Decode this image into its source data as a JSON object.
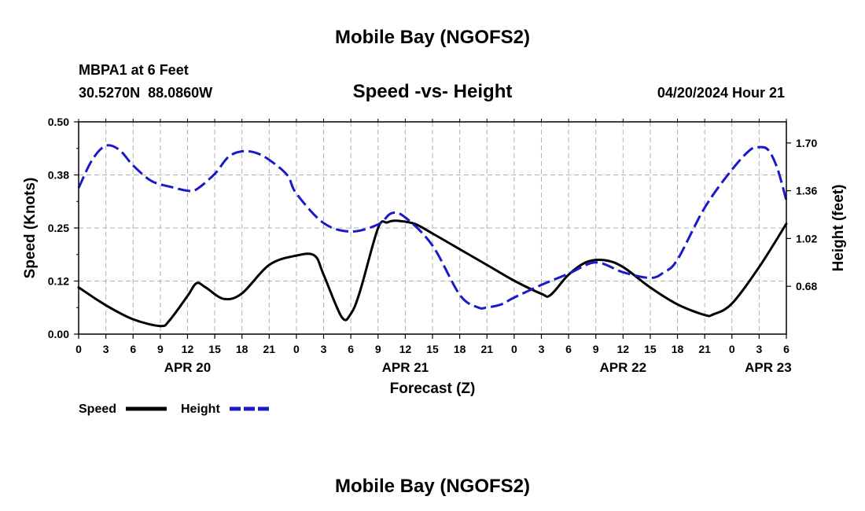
{
  "chart_data": {
    "type": "line",
    "title": "Mobile Bay (NGOFS2)",
    "subtitle": "Speed -vs- Height",
    "station": "MBPA1 at 6 Feet",
    "coordinates": "30.5270N  88.0860W",
    "timestamp": "04/20/2024 Hour 21",
    "xlabel": "Forecast (Z)",
    "ylabel_left": "Speed (Knots)",
    "ylabel_right": "Height (feet)",
    "x_range": [
      0,
      78
    ],
    "ylim_left": [
      0,
      0.5
    ],
    "ylim_right": [
      0.34,
      1.85
    ],
    "grid": true,
    "x_ticks": [
      {
        "x": 0,
        "label": "0"
      },
      {
        "x": 3,
        "label": "3"
      },
      {
        "x": 6,
        "label": "6"
      },
      {
        "x": 9,
        "label": "9"
      },
      {
        "x": 12,
        "label": "12"
      },
      {
        "x": 15,
        "label": "15"
      },
      {
        "x": 18,
        "label": "18"
      },
      {
        "x": 21,
        "label": "21"
      },
      {
        "x": 24,
        "label": "0"
      },
      {
        "x": 27,
        "label": "3"
      },
      {
        "x": 30,
        "label": "6"
      },
      {
        "x": 33,
        "label": "9"
      },
      {
        "x": 36,
        "label": "12"
      },
      {
        "x": 39,
        "label": "15"
      },
      {
        "x": 42,
        "label": "18"
      },
      {
        "x": 45,
        "label": "21"
      },
      {
        "x": 48,
        "label": "0"
      },
      {
        "x": 51,
        "label": "3"
      },
      {
        "x": 54,
        "label": "6"
      },
      {
        "x": 57,
        "label": "9"
      },
      {
        "x": 60,
        "label": "12"
      },
      {
        "x": 63,
        "label": "15"
      },
      {
        "x": 66,
        "label": "18"
      },
      {
        "x": 69,
        "label": "21"
      },
      {
        "x": 72,
        "label": "0"
      },
      {
        "x": 75,
        "label": "3"
      },
      {
        "x": 78,
        "label": "6"
      }
    ],
    "date_labels": [
      {
        "x": 12,
        "label": "APR 20"
      },
      {
        "x": 36,
        "label": "APR 21"
      },
      {
        "x": 60,
        "label": "APR 22"
      },
      {
        "x": 76,
        "label": "APR 23"
      }
    ],
    "left_ticks": [
      {
        "value": 0.0,
        "label": "0.00"
      },
      {
        "value": 0.125,
        "label": "0.12"
      },
      {
        "value": 0.25,
        "label": "0.25"
      },
      {
        "value": 0.375,
        "label": "0.38"
      },
      {
        "value": 0.5,
        "label": "0.50"
      }
    ],
    "right_ticks": [
      {
        "value": 0.68,
        "label": "0.68"
      },
      {
        "value": 1.02,
        "label": "1.02"
      },
      {
        "value": 1.36,
        "label": "1.36"
      },
      {
        "value": 1.7,
        "label": "1.70"
      }
    ],
    "series": [
      {
        "name": "Speed",
        "axis": "left",
        "color": "#000000",
        "dash": "solid",
        "x": [
          0,
          3,
          6,
          9,
          10,
          12,
          13,
          14,
          16,
          18,
          21,
          24,
          26,
          27,
          29,
          30,
          31,
          33,
          34,
          35,
          37,
          39,
          42,
          45,
          48,
          51,
          52,
          54,
          56,
          58,
          60,
          63,
          66,
          69,
          70,
          72,
          75,
          78
        ],
        "values": [
          0.11,
          0.068,
          0.035,
          0.019,
          0.032,
          0.09,
          0.12,
          0.11,
          0.083,
          0.096,
          0.163,
          0.185,
          0.185,
          0.14,
          0.04,
          0.048,
          0.1,
          0.25,
          0.263,
          0.267,
          0.26,
          0.237,
          0.2,
          0.163,
          0.126,
          0.095,
          0.092,
          0.14,
          0.17,
          0.174,
          0.158,
          0.11,
          0.07,
          0.045,
          0.047,
          0.072,
          0.158,
          0.26
        ]
      },
      {
        "name": "Height",
        "axis": "right",
        "color": "#1a1ac8",
        "dash": "dashed",
        "x": [
          0,
          1.5,
          3,
          4.5,
          6,
          8,
          10,
          12,
          13,
          15,
          16.5,
          18,
          19.5,
          21,
          23,
          24,
          27,
          30,
          33,
          34.5,
          36,
          39,
          42,
          44,
          45,
          46.5,
          48,
          51,
          54,
          57,
          60,
          63,
          64.5,
          66,
          69,
          72,
          74,
          75,
          76,
          77,
          78
        ],
        "values": [
          1.38,
          1.58,
          1.68,
          1.65,
          1.54,
          1.43,
          1.39,
          1.36,
          1.37,
          1.48,
          1.6,
          1.64,
          1.63,
          1.58,
          1.47,
          1.34,
          1.13,
          1.07,
          1.12,
          1.2,
          1.17,
          0.97,
          0.62,
          0.53,
          0.53,
          0.55,
          0.6,
          0.69,
          0.77,
          0.85,
          0.78,
          0.74,
          0.78,
          0.87,
          1.24,
          1.51,
          1.65,
          1.67,
          1.65,
          1.52,
          1.29
        ]
      }
    ],
    "legend": {
      "placement": "bottom-left",
      "entries": [
        {
          "label": "Speed",
          "color": "#000000",
          "dash": "solid"
        },
        {
          "label": "Height",
          "color": "#1a1ac8",
          "dash": "dashed"
        }
      ]
    },
    "footer_title": "Mobile Bay (NGOFS2)"
  }
}
